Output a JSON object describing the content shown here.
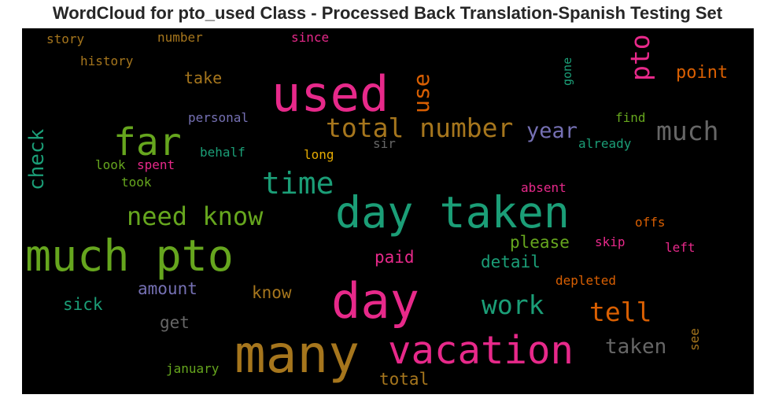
{
  "title": "WordCloud for pto_used Class - Processed Back Translation-Spanish Testing Set",
  "colors": {
    "background": "#000000",
    "pink": "#e7298a",
    "teal": "#1b9e77",
    "green": "#66a61e",
    "orange": "#d95f02",
    "gold": "#a6761d",
    "gray": "#666666",
    "purple": "#7570b3",
    "yellow": "#e6ab02"
  },
  "words": {
    "many": "many",
    "day_taken": "day taken",
    "much_pto": "much pto",
    "day": "day",
    "used": "used",
    "vacation": "vacation",
    "far": "far",
    "time": "time",
    "total_number": "total number",
    "need_know": "need know",
    "much": "much",
    "work": "work",
    "tell": "tell",
    "pto": "pto",
    "use": "use",
    "year": "year",
    "check": "check",
    "taken": "taken",
    "point": "point",
    "please": "please",
    "detail": "detail",
    "paid": "paid",
    "amount": "amount",
    "know": "know",
    "sick": "sick",
    "get": "get",
    "total": "total",
    "take": "take",
    "personal": "personal",
    "find": "find",
    "already": "already",
    "behalf": "behalf",
    "long": "long",
    "sir": "sir",
    "look": "look",
    "spent": "spent",
    "took": "took",
    "absent": "absent",
    "offs": "offs",
    "skip": "skip",
    "left": "left",
    "depleted": "depleted",
    "see": "see",
    "january": "january",
    "story": "story",
    "number": "number",
    "since": "since",
    "history": "history",
    "gone": "gone"
  }
}
